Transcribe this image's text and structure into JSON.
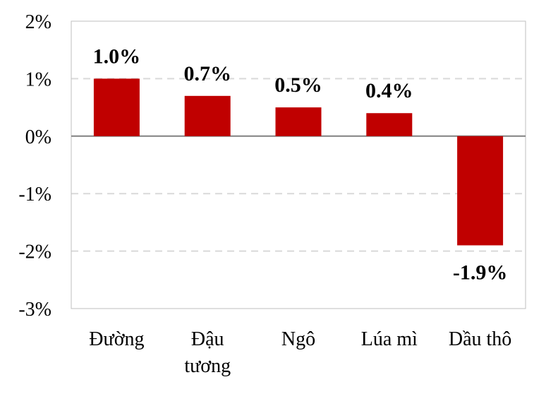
{
  "chart_data": {
    "type": "bar",
    "categories": [
      [
        "Đường"
      ],
      [
        "Đậu",
        "tương"
      ],
      [
        "Ngô"
      ],
      [
        "Lúa mì"
      ],
      [
        "Dầu thô"
      ]
    ],
    "values": [
      1.0,
      0.7,
      0.5,
      0.4,
      -1.9
    ],
    "data_labels": [
      "1.0%",
      "0.7%",
      "0.5%",
      "0.4%",
      "-1.9%"
    ],
    "y_ticks": [
      2,
      1,
      0,
      -1,
      -2,
      -3
    ],
    "y_tick_labels": [
      "2%",
      "1%",
      "0%",
      "-1%",
      "-2%",
      "-3%"
    ],
    "ylim": [
      -3,
      2
    ],
    "grid": "horizontal dashed",
    "title": "",
    "xlabel": "",
    "ylabel": "",
    "colors": {
      "bar": "#C00000",
      "grid": "#D9D9D9",
      "axis": "#808080",
      "border": "#BFBFBF"
    }
  }
}
